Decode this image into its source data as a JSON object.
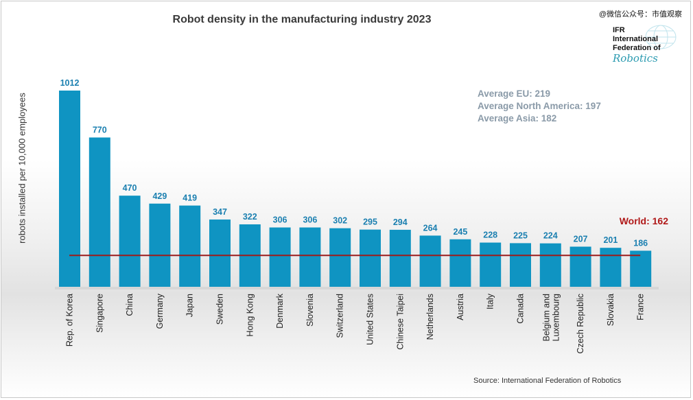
{
  "watermark": "@微信公众号：市值观察",
  "logo": {
    "line1": "IFR",
    "line2": "International",
    "line3": "Federation of",
    "script": "Robotics"
  },
  "averages": [
    "Average EU: 219",
    "Average North America: 197",
    "Average Asia: 182"
  ],
  "source": "Source: International Federation of Robotics",
  "colors": {
    "bar": "#0f94c2",
    "bar_label": "#1a7fb0",
    "world_line": "#9b1b1b",
    "world_label": "#b01818"
  },
  "chart_data": {
    "type": "bar",
    "title": "Robot density in the manufacturing industry 2023",
    "ylabel": "robots installed per 10,000 employees",
    "xlabel": "",
    "categories": [
      "Rep. of Korea",
      "Singapore",
      "China",
      "Germany",
      "Japan",
      "Sweden",
      "Hong Kong",
      "Denmark",
      "Slovenia",
      "Switzerland",
      "United States",
      "Chinese Taipei",
      "Netherlands",
      "Austria",
      "Italy",
      "Canada",
      "Belgium and Luxembourg",
      "Czech Republic",
      "Slovakia",
      "France"
    ],
    "values": [
      1012,
      770,
      470,
      429,
      419,
      347,
      322,
      306,
      306,
      302,
      295,
      294,
      264,
      245,
      228,
      225,
      224,
      207,
      201,
      186
    ],
    "reference_line": {
      "label": "World: 162",
      "value": 162
    },
    "ylim": [
      0,
      1012
    ],
    "grid": false,
    "data_labels": true
  }
}
